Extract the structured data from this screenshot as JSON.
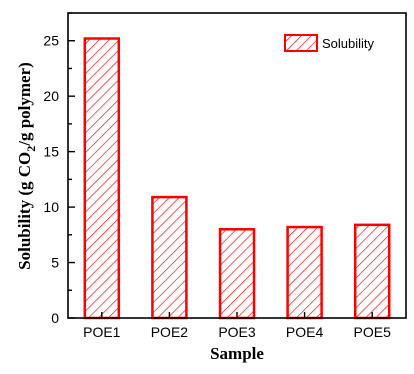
{
  "chart_data": {
    "type": "bar",
    "categories": [
      "POE1",
      "POE2",
      "POE3",
      "POE4",
      "POE5"
    ],
    "series": [
      {
        "name": "Solubility",
        "values": [
          25.2,
          10.9,
          8.0,
          8.2,
          8.4
        ]
      }
    ],
    "xlabel": "Sample",
    "ylabel_parts": {
      "before": "Solubility (g CO",
      "sub": "2",
      "after": "/g polymer)"
    },
    "ylim": [
      0,
      27.5
    ],
    "yticks": [
      0,
      5,
      10,
      15,
      20,
      25
    ],
    "grid": false,
    "legend_position": "top-right",
    "bar_style": {
      "edge_color": "#ff0000",
      "hatch_color": "#ff0000",
      "hatch": "diagonal"
    }
  }
}
